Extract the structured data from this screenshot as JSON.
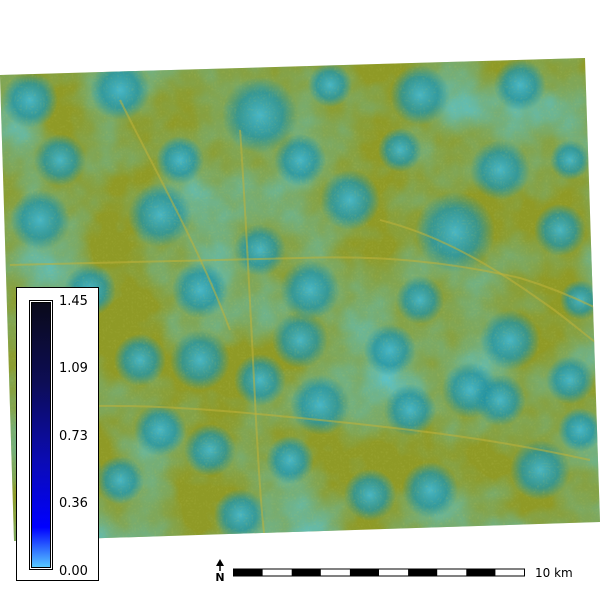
{
  "map": {
    "layer": "terrain-raster",
    "colors": {
      "teal": "#1a8fa3",
      "cyan": "#3fb2c8",
      "olive": "#8f9a1e",
      "yellow": "#b8b23a",
      "dark_teal": "#0e6675"
    }
  },
  "legend": {
    "ticks": [
      "1.45",
      "1.09",
      "0.73",
      "0.36",
      "0.00"
    ],
    "max_value": 1.45,
    "min_value": 0.0,
    "gradient_colors": {
      "top": "#0a0a1a",
      "upper": "#0d0d55",
      "middle": "#0b0bb4",
      "lower": "#0000ff",
      "bottom": "#57c8ff"
    }
  },
  "north_arrow": {
    "label": "N"
  },
  "scale_bar": {
    "label": "10 km"
  }
}
